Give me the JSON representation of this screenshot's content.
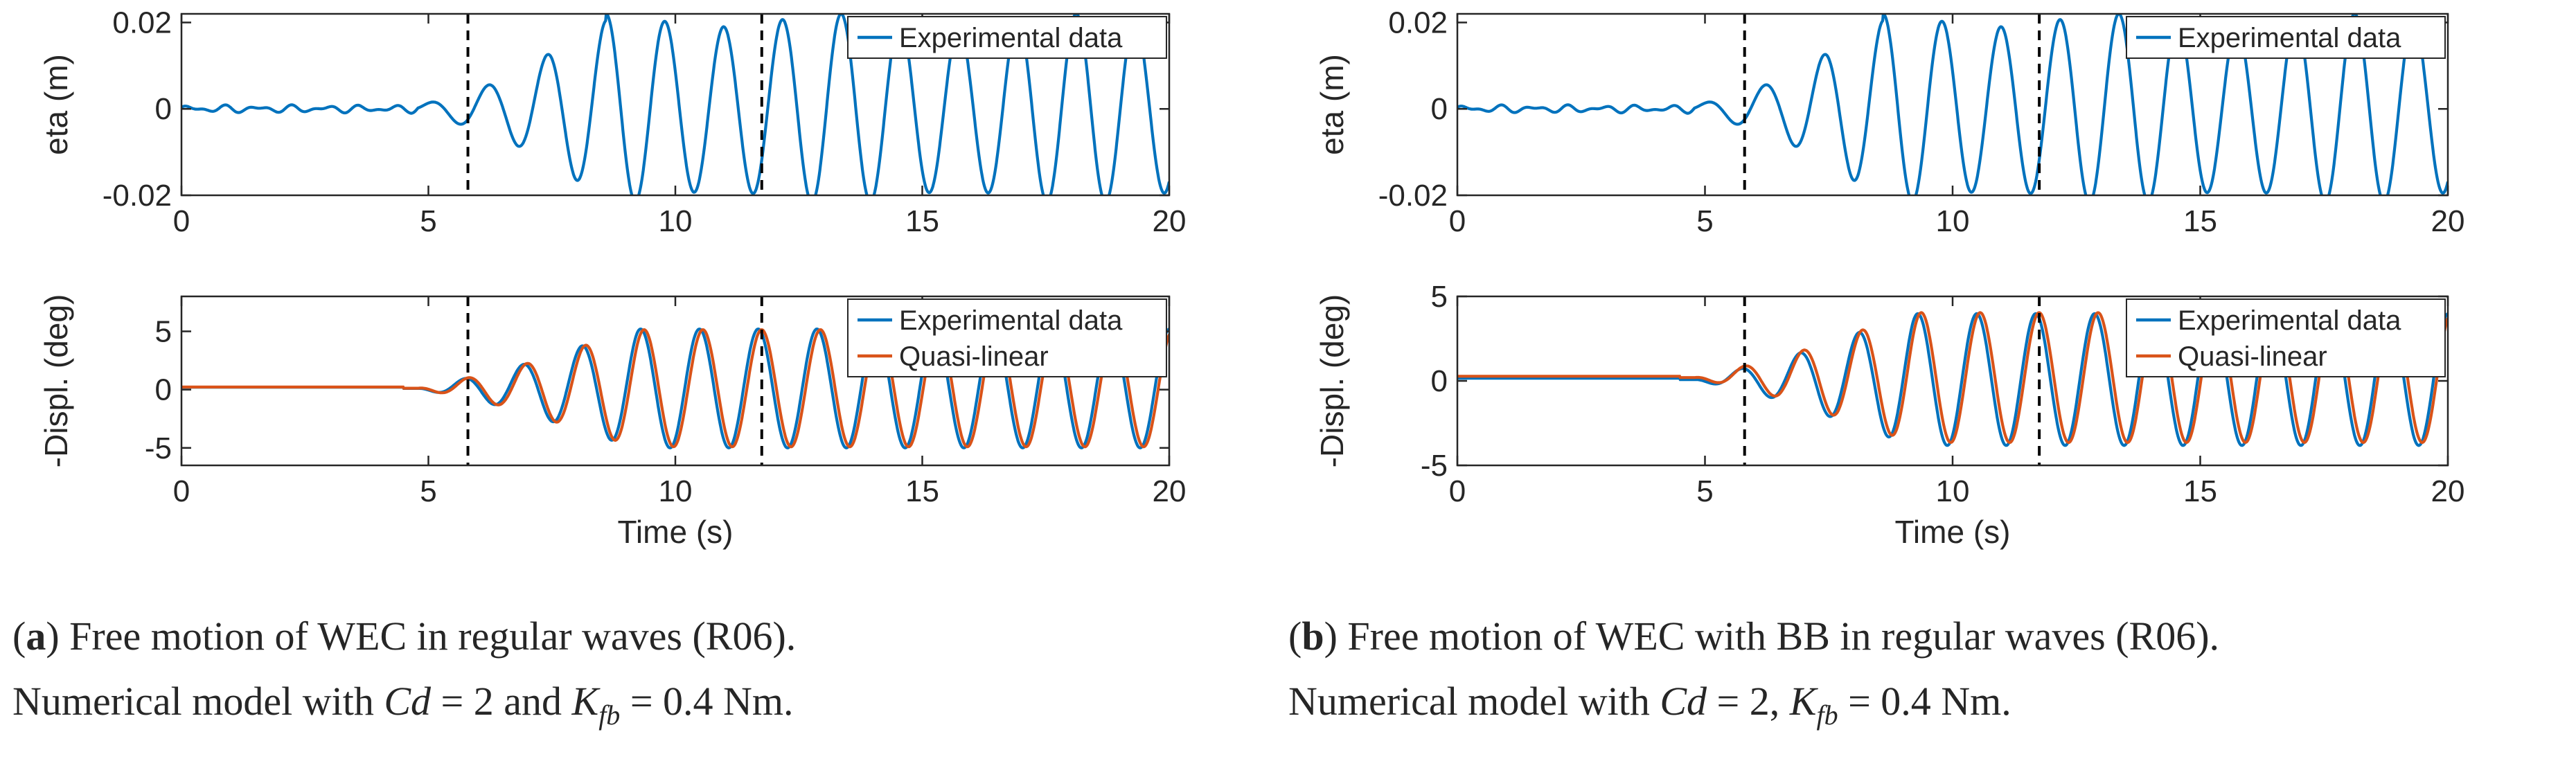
{
  "chart_data": [
    {
      "id": "a-top",
      "type": "line",
      "xlabel": "",
      "ylabel": "eta (m)",
      "xlim": [
        0,
        20
      ],
      "ylim": [
        -0.02,
        0.022
      ],
      "xticks": [
        0,
        5,
        10,
        15,
        20
      ],
      "xtick_labels": [
        "0",
        "5",
        "10",
        "15",
        "20"
      ],
      "yticks": [
        -0.02,
        0,
        0.02
      ],
      "ytick_labels": [
        "-0.02",
        "0",
        "0.02"
      ],
      "vlines": [
        5.8,
        11.75
      ],
      "legend": [
        "Experimental data"
      ],
      "legend_loc": "top-right",
      "series": [
        {
          "name": "Experimental data",
          "color": "#0072BD",
          "kind": "eta"
        }
      ]
    },
    {
      "id": "a-bottom",
      "type": "line",
      "xlabel": "Time (s)",
      "ylabel": "-Displ. (deg)",
      "xlim": [
        0,
        20
      ],
      "ylim": [
        -6.5,
        8
      ],
      "xticks": [
        0,
        5,
        10,
        15,
        20
      ],
      "xtick_labels": [
        "0",
        "5",
        "10",
        "15",
        "20"
      ],
      "yticks": [
        -5,
        0,
        5
      ],
      "ytick_labels": [
        "-5",
        "0",
        "5"
      ],
      "vlines": [
        5.8,
        11.75
      ],
      "legend": [
        "Experimental data",
        "Quasi-linear"
      ],
      "legend_loc": "top-right",
      "series": [
        {
          "name": "Experimental data",
          "color": "#0072BD",
          "kind": "displ_exp",
          "amplitude": 5.1
        },
        {
          "name": "Quasi-linear",
          "color": "#D95319",
          "kind": "displ_ql",
          "amplitude": 5.1
        }
      ]
    },
    {
      "id": "b-top",
      "type": "line",
      "xlabel": "",
      "ylabel": "eta (m)",
      "xlim": [
        0,
        20
      ],
      "ylim": [
        -0.02,
        0.022
      ],
      "xticks": [
        0,
        5,
        10,
        15,
        20
      ],
      "xtick_labels": [
        "0",
        "5",
        "10",
        "15",
        "20"
      ],
      "yticks": [
        -0.02,
        0,
        0.02
      ],
      "ytick_labels": [
        "-0.02",
        "0",
        "0.02"
      ],
      "vlines": [
        5.8,
        11.75
      ],
      "legend": [
        "Experimental data"
      ],
      "legend_loc": "top-right",
      "series": [
        {
          "name": "Experimental data",
          "color": "#0072BD",
          "kind": "eta"
        }
      ]
    },
    {
      "id": "b-bottom",
      "type": "line",
      "xlabel": "Time (s)",
      "ylabel": "-Displ. (deg)",
      "xlim": [
        0,
        20
      ],
      "ylim": [
        -5,
        5
      ],
      "xticks": [
        0,
        5,
        10,
        15,
        20
      ],
      "xtick_labels": [
        "0",
        "5",
        "10",
        "15",
        "20"
      ],
      "yticks": [
        -5,
        0,
        5
      ],
      "ytick_labels": [
        "-5",
        "0",
        "5"
      ],
      "vlines": [
        5.8,
        11.75
      ],
      "legend": [
        "Experimental data",
        "Quasi-linear"
      ],
      "legend_loc": "top-right",
      "series": [
        {
          "name": "Experimental data",
          "color": "#0072BD",
          "kind": "displ_exp",
          "amplitude": 3.9
        },
        {
          "name": "Quasi-linear",
          "color": "#D95319",
          "kind": "displ_ql",
          "amplitude": 3.9
        }
      ]
    }
  ],
  "captions": {
    "a": {
      "label": "a",
      "line1": ") Free motion of WEC in regular waves (R06).",
      "line2_pre": "Numerical model with ",
      "cd": "Cd",
      "eq1": " = 2 and ",
      "k": "K",
      "k_sub": "fb",
      "eq2": " = 0.4 Nm."
    },
    "b": {
      "label": "b",
      "line1": ") Free motion of WEC with BB in regular waves (R06).",
      "line2_pre": "Numerical model with ",
      "cd": "Cd",
      "eq1": " = 2, ",
      "k": "K",
      "k_sub": "fb",
      "eq2": " = 0.4 Nm."
    }
  }
}
